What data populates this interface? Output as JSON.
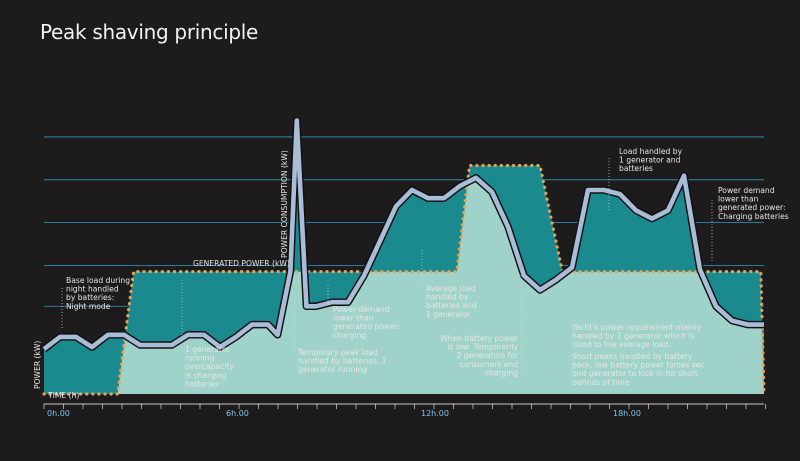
{
  "title": "Peak shaving principle",
  "chart_data": {
    "type": "area",
    "title": "Peak shaving principle",
    "xlabel": "TIME (h)",
    "ylabel": "POWER (kW)",
    "x_ticks": [
      "0h.00",
      "6h.00",
      "12h.00",
      "18h.00"
    ],
    "xlim": [
      0,
      22.5
    ],
    "grid": true,
    "series": [
      {
        "name": "POWER CONSUMPTION (kW)",
        "x": [
          0,
          0.5,
          1,
          1.5,
          2,
          2.5,
          3,
          3.5,
          4,
          4.5,
          5,
          5.5,
          6,
          6.5,
          7,
          7.3,
          7.7,
          7.9,
          8.2,
          8.5,
          9,
          9.5,
          10,
          10.5,
          11,
          11.5,
          12,
          12.5,
          13,
          13.5,
          14,
          14.5,
          15,
          15.5,
          16,
          16.5,
          17,
          17.5,
          18,
          18.5,
          19,
          19.5,
          20,
          20.5,
          21,
          21.5,
          22,
          22.5
        ],
        "y": [
          2.2,
          2.8,
          2.8,
          2.3,
          2.9,
          2.9,
          2.4,
          2.4,
          2.4,
          2.9,
          2.9,
          2.3,
          2.8,
          3.4,
          3.4,
          2.9,
          6.0,
          13.4,
          4.3,
          4.3,
          4.5,
          4.5,
          5.8,
          7.5,
          9.2,
          10.0,
          9.6,
          9.6,
          10.2,
          10.6,
          9.9,
          8.2,
          5.8,
          5.1,
          5.6,
          6.2,
          10.0,
          10.0,
          9.8,
          9.0,
          8.6,
          9.0,
          10.7,
          6.1,
          4.3,
          3.6,
          3.4,
          3.4
        ]
      },
      {
        "name": "GENERATED POWER (kW)",
        "x": [
          0,
          2.3,
          2.8,
          7.7,
          7.7,
          12.9,
          13.3,
          15.5,
          16.2,
          20.9,
          21.7,
          22.4,
          22.5
        ],
        "y": [
          0,
          0,
          6.0,
          6.0,
          6.0,
          6.0,
          11.2,
          11.2,
          6.0,
          6.0,
          6.0,
          6.0,
          0
        ]
      }
    ],
    "annotations": [
      "Base load during night handled by batteries: Night mode",
      "1 generator running overcapacity is charging batteries",
      "GENERATED POWER (kW)",
      "POWER CONSUMPTION (kW)",
      "Temporary peak load handled by batteries, 1 generator running",
      "Power demand lower than generated power: charging",
      "Average load handled by batteries and 1 generator",
      "When battery power is low: Temporarily 2 generators for consumers and charging",
      "Load handled by 1 generator and batteries",
      "Power demand lower than generated power: Charging batteries",
      "Yacht's power requirement mainly handled by 1 generator which is sized to the average load.",
      "Short peaks handled by battery pack, low battery power forces sec ond generator to kick in for short periods of time"
    ],
    "colors": {
      "background": "#1d1b1c",
      "gridline": "#2f9ec0",
      "consumption_line": "#a9bcd8",
      "deficit_fill": "#1a8a8e",
      "surplus_fill": "#9fd2c8",
      "generated_dots": "#e2a55a"
    }
  },
  "labels": {
    "ann_night": [
      "Base load during",
      "night handled",
      "by batteries:",
      "Night mode"
    ],
    "ann_1gen": [
      "1 generator",
      "running",
      "overcapacity",
      "is charging",
      "batteries"
    ],
    "ann_generated": "GENERATED POWER (kW)",
    "ann_consumption": "POWER CONSUMPTION (kW)",
    "ann_temp": [
      "Temporary peak load",
      "handled by batteries, 1",
      "generator running"
    ],
    "ann_lower": [
      "Power demand",
      "lower than",
      "generated power:",
      "charging"
    ],
    "ann_average": [
      "Average load",
      "handled by",
      "batteries and",
      "1 generator"
    ],
    "ann_battery_low": [
      "When battery power",
      "is low: Temporarily",
      "2 generators for",
      "consumers and",
      "charging"
    ],
    "ann_load1gen": [
      "Load handled by",
      "1 generator and",
      "batteries"
    ],
    "ann_charging": [
      "Power demand",
      "lower than",
      "generated power:",
      "Charging batteries"
    ],
    "ann_yacht": [
      "Yacht's power requirement mainly",
      "handled by 1 generator which is",
      "sized to the average load."
    ],
    "ann_short": [
      "Short peaks handled by battery",
      "pack, low battery power forces sec",
      "ond generator to kick in for short",
      "periods of time"
    ]
  }
}
